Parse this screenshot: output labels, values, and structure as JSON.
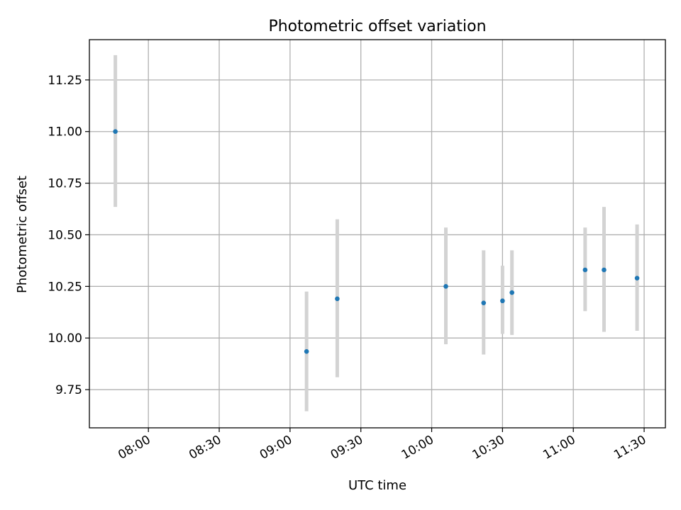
{
  "chart_data": {
    "type": "scatter",
    "title": "Photometric offset variation",
    "xlabel": "UTC time",
    "ylabel": "Photometric offset",
    "xlim": [
      "07:35",
      "11:39"
    ],
    "ylim": [
      9.565,
      11.445
    ],
    "x_ticks": [
      "08:00",
      "08:30",
      "09:00",
      "09:30",
      "10:00",
      "10:30",
      "11:00",
      "11:30"
    ],
    "y_ticks": [
      "9.75",
      "10.00",
      "10.25",
      "10.50",
      "10.75",
      "11.00",
      "11.25"
    ],
    "grid": true,
    "colors": {
      "point": "#1f77b4",
      "errorbar": "#d3d3d3",
      "grid": "#b0b0b0"
    },
    "points": [
      {
        "time": "07:46",
        "y": 11.0,
        "lower": 10.635,
        "upper": 11.37
      },
      {
        "time": "09:07",
        "y": 9.935,
        "lower": 9.645,
        "upper": 10.225
      },
      {
        "time": "09:20",
        "y": 10.19,
        "lower": 9.81,
        "upper": 10.575
      },
      {
        "time": "10:06",
        "y": 10.25,
        "lower": 9.97,
        "upper": 10.535
      },
      {
        "time": "10:22",
        "y": 10.17,
        "lower": 9.92,
        "upper": 10.425
      },
      {
        "time": "10:30",
        "y": 10.18,
        "lower": 10.02,
        "upper": 10.35
      },
      {
        "time": "10:34",
        "y": 10.22,
        "lower": 10.015,
        "upper": 10.425
      },
      {
        "time": "11:05",
        "y": 10.33,
        "lower": 10.13,
        "upper": 10.535
      },
      {
        "time": "11:13",
        "y": 10.33,
        "lower": 10.03,
        "upper": 10.635
      },
      {
        "time": "11:27",
        "y": 10.29,
        "lower": 10.035,
        "upper": 10.55
      }
    ]
  }
}
